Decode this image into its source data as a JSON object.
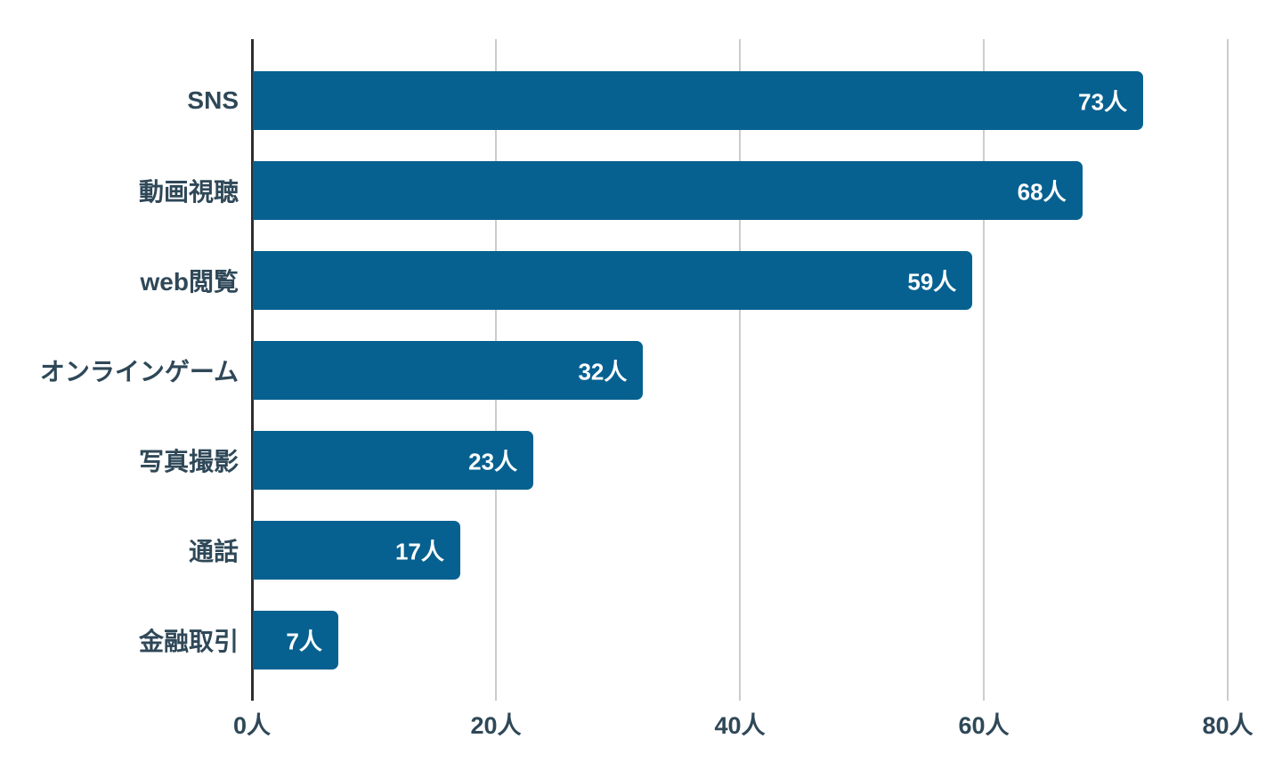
{
  "chart_data": {
    "type": "bar",
    "orientation": "horizontal",
    "title": "",
    "xlabel": "",
    "ylabel": "",
    "unit": "人",
    "categories": [
      "SNS",
      "動画視聴",
      "web閲覧",
      "オンラインゲーム",
      "写真撮影",
      "通話",
      "金融取引"
    ],
    "values": [
      73,
      68,
      59,
      32,
      23,
      17,
      7
    ],
    "value_labels": [
      "73人",
      "68人",
      "59人",
      "32人",
      "23人",
      "17人",
      "7人"
    ],
    "x_ticks": [
      0,
      20,
      40,
      60,
      80
    ],
    "x_tick_labels": [
      "0人",
      "20人",
      "40人",
      "60人",
      "80人"
    ],
    "xlim": [
      0,
      80
    ],
    "grid": true,
    "legend": false,
    "colors": {
      "bar": "#066190",
      "bar_value_text": "#ffffff",
      "category_text": "#2F4858",
      "tick_text": "#2F4858",
      "axis_line": "#2e2e2e",
      "gridline": "#cccccc",
      "background": "#ffffff"
    }
  }
}
